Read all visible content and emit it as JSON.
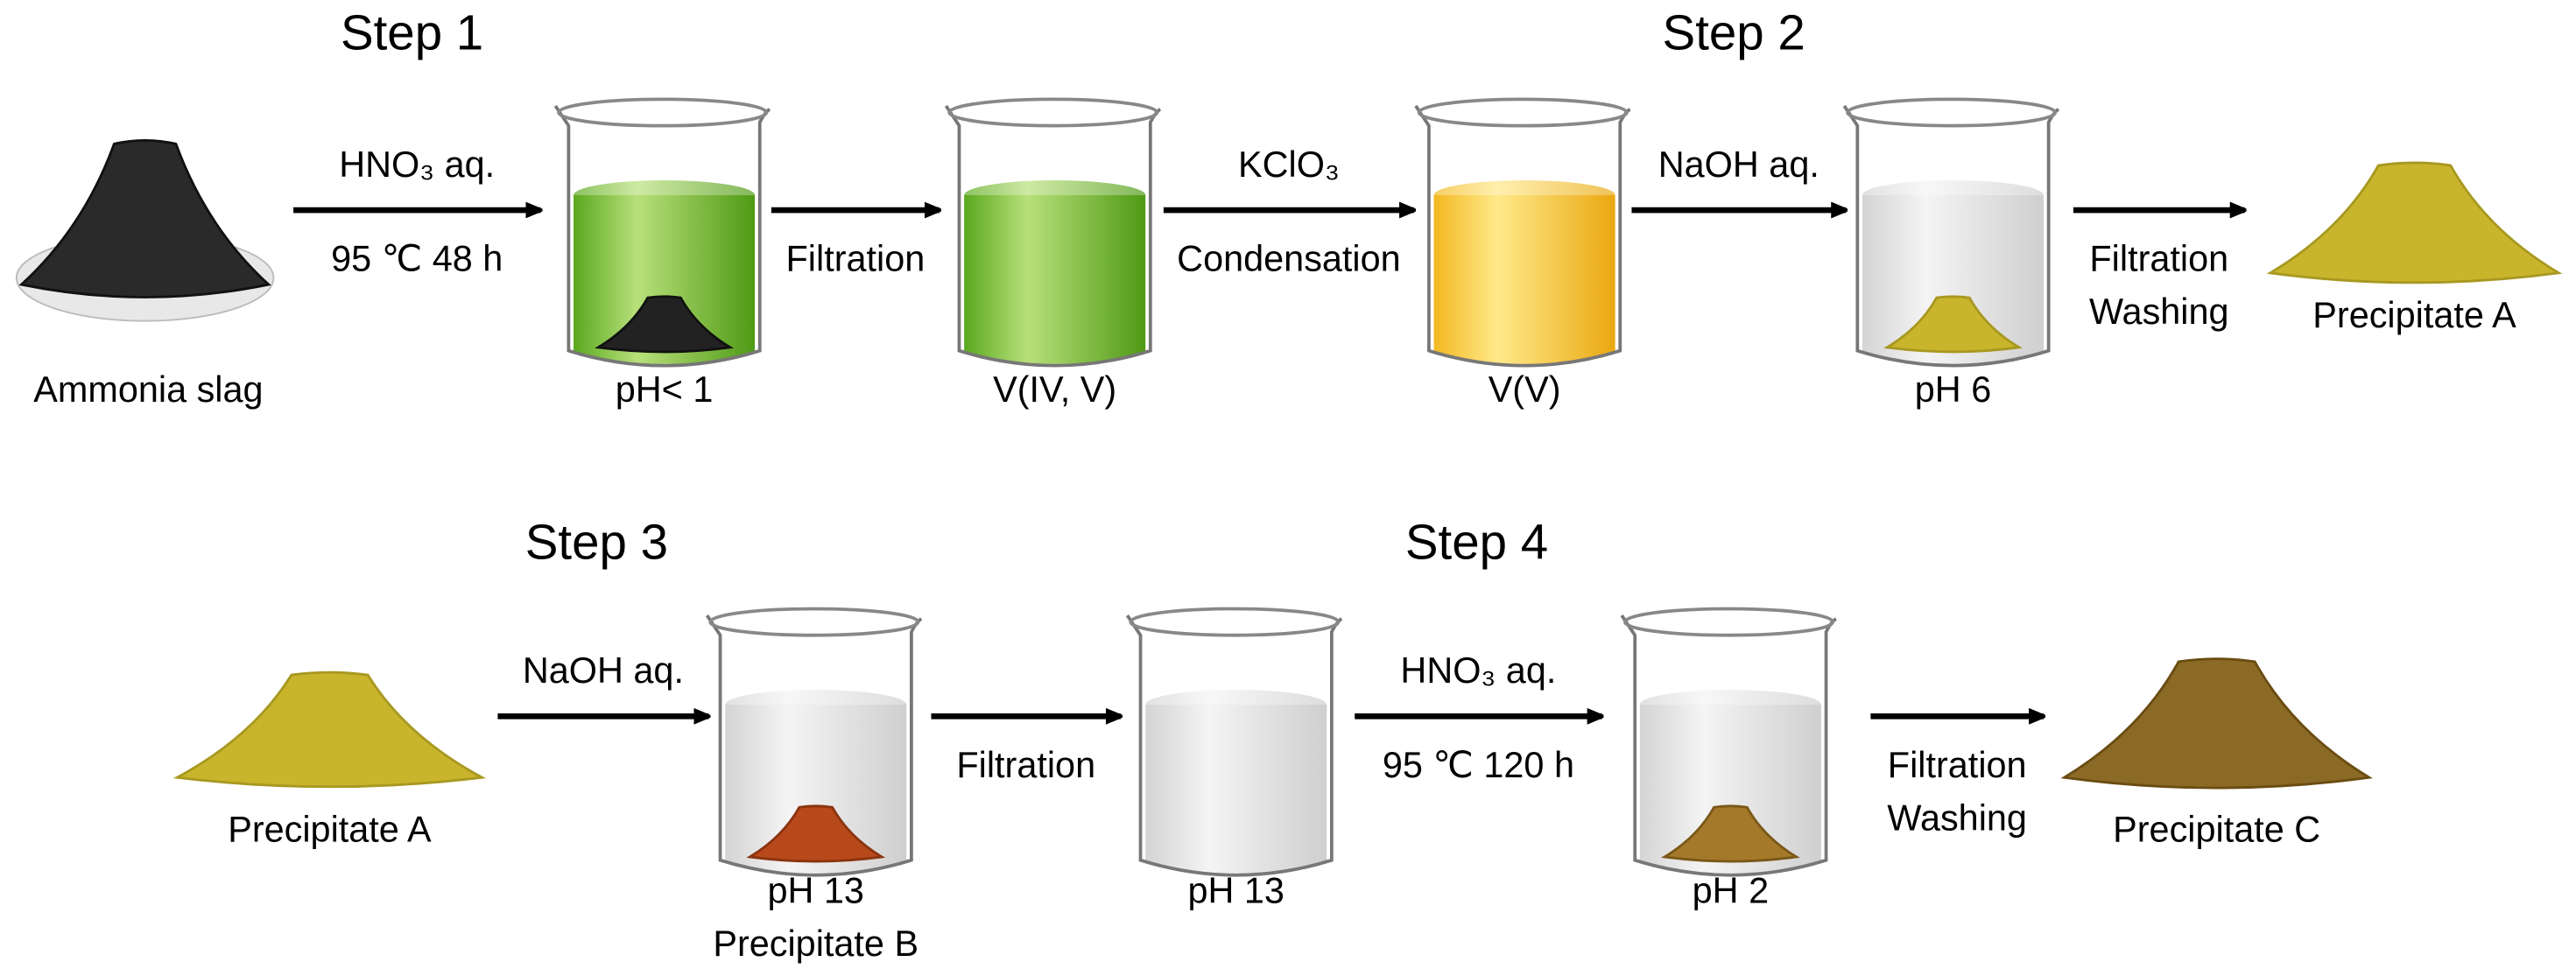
{
  "steps": [
    "Step 1",
    "Step 2",
    "Step 3",
    "Step 4"
  ],
  "row1": {
    "items": [
      {
        "labels": [
          "Ammonia slag"
        ]
      },
      {
        "labels": [
          "pH< 1"
        ]
      },
      {
        "labels": [
          "V(IV, V)"
        ]
      },
      {
        "labels": [
          "V(V)"
        ]
      },
      {
        "labels": [
          "pH 6"
        ]
      },
      {
        "labels": [
          "Precipitate A"
        ]
      }
    ],
    "arrows": [
      {
        "above": [
          "HNO₃ aq."
        ],
        "below": [
          "95 ℃ 48 h"
        ]
      },
      {
        "above": [],
        "below": [
          "Filtration"
        ]
      },
      {
        "above": [
          "KClO₃"
        ],
        "below": [
          "Condensation"
        ]
      },
      {
        "above": [
          "NaOH aq."
        ],
        "below": []
      },
      {
        "above": [],
        "below": [
          "Filtration",
          "Washing"
        ]
      }
    ]
  },
  "row2": {
    "items": [
      {
        "labels": [
          "Precipitate A"
        ]
      },
      {
        "labels": [
          "pH 13",
          "Precipitate B"
        ]
      },
      {
        "labels": [
          "pH 13"
        ]
      },
      {
        "labels": [
          "pH 2"
        ]
      },
      {
        "labels": [
          "Precipitate C"
        ]
      }
    ],
    "arrows": [
      {
        "above": [
          "NaOH aq."
        ],
        "below": []
      },
      {
        "above": [],
        "below": [
          "Filtration"
        ]
      },
      {
        "above": [
          "HNO₃ aq."
        ],
        "below": [
          "95 ℃ 120 h"
        ]
      },
      {
        "above": [],
        "below": [
          "Filtration",
          "Washing"
        ]
      }
    ]
  }
}
